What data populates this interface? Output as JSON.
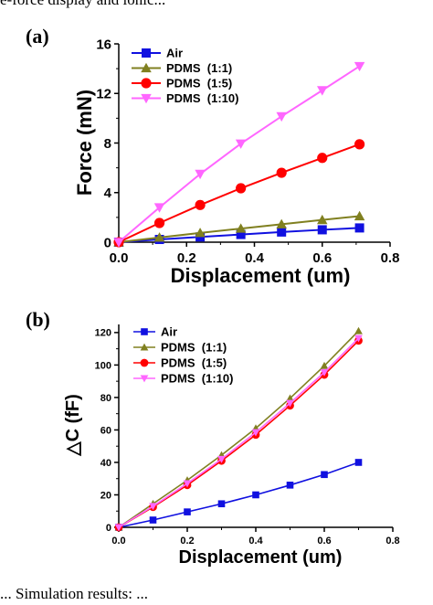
{
  "captions": {
    "top": "e-force display and ionic... ",
    "bottom": "... Simulation results: ..."
  },
  "colors": {
    "air": "#1010e0",
    "pdms_1_1": "#808020",
    "pdms_1_5": "#ff0000",
    "pdms_1_10": "#ff66ff"
  },
  "chart_data": [
    {
      "type": "line",
      "panel_label": "(a)",
      "xlabel": "Displacement (um)",
      "ylabel": "Force (mN)",
      "xlim": [
        0.0,
        0.8
      ],
      "ylim": [
        0,
        16
      ],
      "xticks": [
        "0.0",
        "0.2",
        "0.4",
        "0.6",
        "0.8"
      ],
      "yticks": [
        "0",
        "4",
        "8",
        "12",
        "16"
      ],
      "legend_position": "top-left",
      "x": [
        0,
        0.12,
        0.24,
        0.36,
        0.48,
        0.6,
        0.71
      ],
      "series": [
        {
          "name": "Air",
          "color_key": "air",
          "marker": "square",
          "values": [
            0,
            0.22,
            0.42,
            0.62,
            0.82,
            1.0,
            1.15
          ]
        },
        {
          "name": "PDMS  (1:1)",
          "color_key": "pdms_1_1",
          "marker": "triangle-up",
          "values": [
            0,
            0.38,
            0.75,
            1.1,
            1.45,
            1.8,
            2.1
          ]
        },
        {
          "name": "PDMS  (1:5)",
          "color_key": "pdms_1_5",
          "marker": "circle",
          "values": [
            0,
            1.55,
            3.0,
            4.35,
            5.6,
            6.8,
            7.9
          ]
        },
        {
          "name": "PDMS  (1:10)",
          "color_key": "pdms_1_10",
          "marker": "triangle-down",
          "values": [
            0,
            2.8,
            5.5,
            7.95,
            10.15,
            12.25,
            14.2
          ]
        }
      ]
    },
    {
      "type": "line",
      "panel_label": "(b)",
      "xlabel": "Displacement (um)",
      "ylabel": "△C (fF)",
      "xlim": [
        0.0,
        0.8
      ],
      "ylim": [
        0,
        125
      ],
      "xticks": [
        "0.0",
        "0.2",
        "0.4",
        "0.6",
        "0.8"
      ],
      "yticks": [
        "0",
        "20",
        "40",
        "60",
        "80",
        "100",
        "120"
      ],
      "legend_position": "top-left",
      "x": [
        0,
        0.1,
        0.2,
        0.3,
        0.4,
        0.5,
        0.6,
        0.7
      ],
      "series": [
        {
          "name": "Air",
          "color_key": "air",
          "marker": "square",
          "values": [
            0,
            4.5,
            9.5,
            14.5,
            20.0,
            26.0,
            32.5,
            40.0
          ]
        },
        {
          "name": "PDMS  (1:1)",
          "color_key": "pdms_1_1",
          "marker": "triangle-up",
          "values": [
            0,
            14.5,
            29.0,
            44.5,
            61.0,
            79.5,
            99.5,
            121.0
          ]
        },
        {
          "name": "PDMS  (1:5)",
          "color_key": "pdms_1_5",
          "marker": "circle",
          "values": [
            0,
            12.5,
            26.0,
            41.0,
            57.0,
            75.0,
            94.0,
            115.0
          ]
        },
        {
          "name": "PDMS  (1:10)",
          "color_key": "pdms_1_10",
          "marker": "triangle-down",
          "values": [
            0,
            13.0,
            27.0,
            42.0,
            58.5,
            76.5,
            95.5,
            116.5
          ]
        }
      ]
    }
  ]
}
